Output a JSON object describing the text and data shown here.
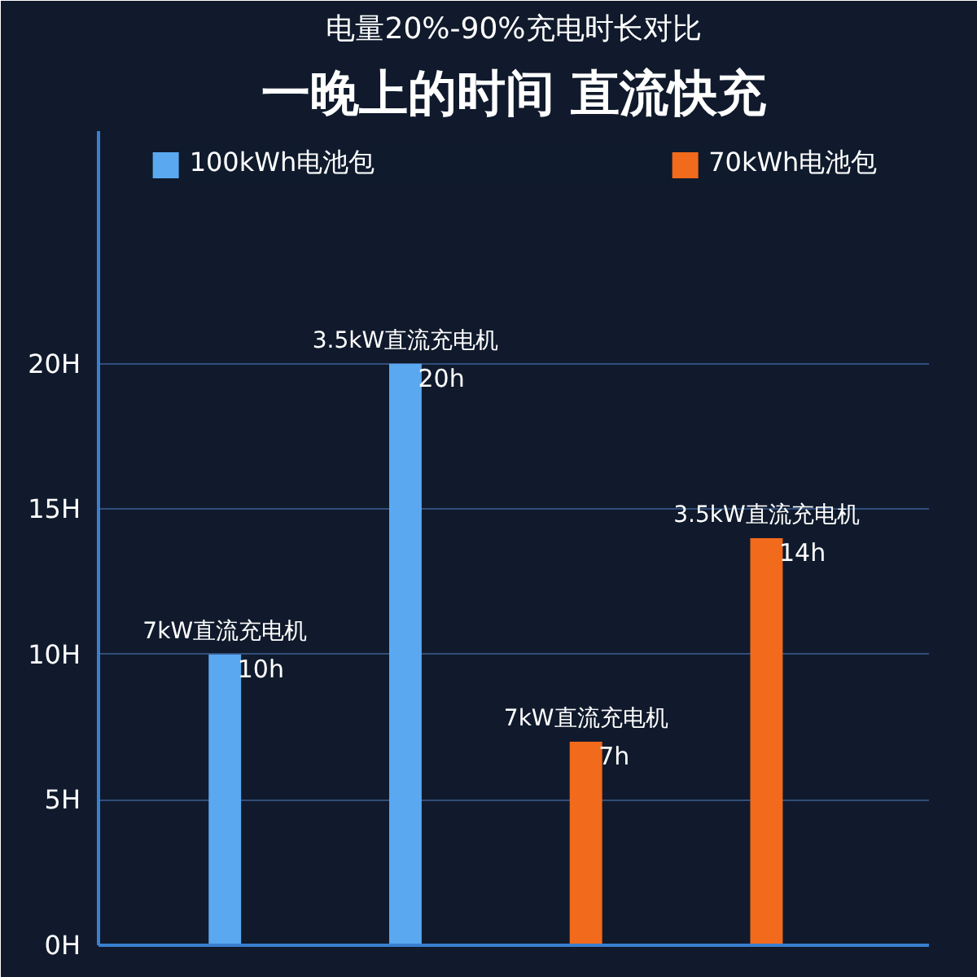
{
  "chart_data": {
    "type": "bar",
    "title": "一晚上的时间 直流快充",
    "subtitle": "电量20%-90%充电时长对比",
    "categories": [
      "7kW直流充电机",
      "3.5kW直流充电机",
      "7kW直流充电机",
      "3.5kW直流充电机"
    ],
    "series": [
      {
        "name": "100kWh电池包",
        "color": "#5aa8f0",
        "values": [
          10,
          20,
          null,
          null
        ],
        "value_labels": [
          "10h",
          "20h",
          null,
          null
        ]
      },
      {
        "name": "70kWh电池包",
        "color": "#f26a1b",
        "values": [
          null,
          null,
          7,
          14
        ],
        "value_labels": [
          null,
          null,
          "7h",
          "14h"
        ]
      }
    ],
    "ylim": [
      0,
      28
    ],
    "yticks": [
      {
        "value": 0,
        "label": "0H"
      },
      {
        "value": 5,
        "label": "5H"
      },
      {
        "value": 10,
        "label": "10H"
      },
      {
        "value": 15,
        "label": "15H"
      },
      {
        "value": 20,
        "label": "20H"
      }
    ],
    "grid": "y",
    "legend": "top"
  }
}
